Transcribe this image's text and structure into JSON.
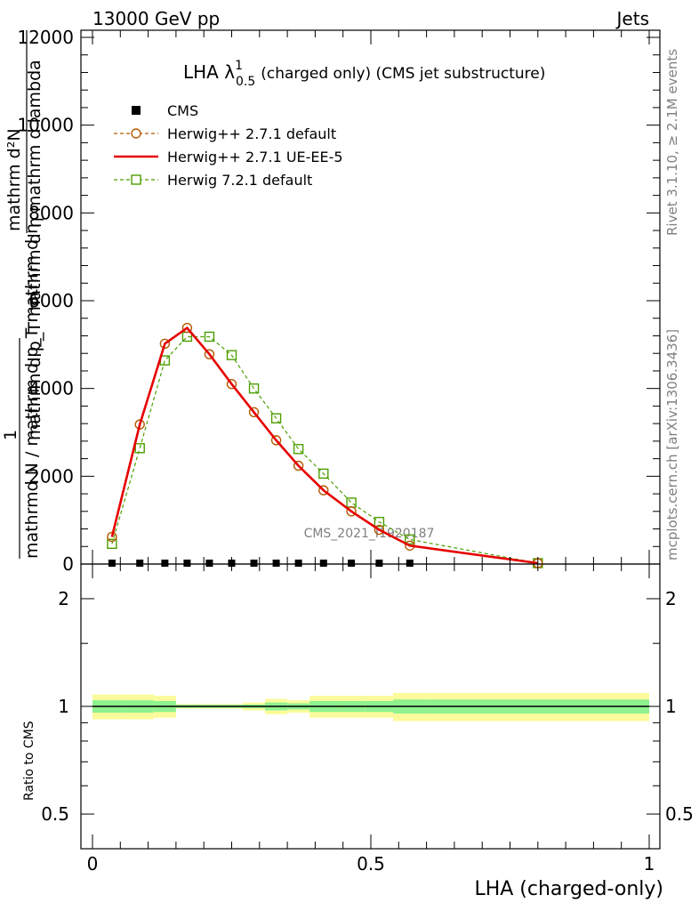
{
  "header": {
    "energy_label": "13000 GeV pp",
    "process_label": "Jets"
  },
  "side_labels": {
    "rivet": "Rivet 3.1.10, ≥ 2.1M events",
    "mcplots": "mcplots.cern.ch [arXiv:1306.3436]"
  },
  "watermark": "CMS_2021_I1920187",
  "chart_data": [
    {
      "type": "line",
      "title_main": "LHA λ",
      "title_sup": "1",
      "title_sub": "0.5",
      "title_rest": "(charged only) (CMS jet substructure)",
      "ylabel": "1 / mathrmd N / mathrm d p_T mathrm d η · mathrm d²N / mathrm d p_T mathrm d η mathrm d lambda",
      "ylabel_top": "mathrm d²N",
      "ylabel_mid": "mathrm d p_T mathrm d η mathrm d lambda",
      "ylabel_one": "1",
      "ylabel_bottom": "mathrmd N / mathrm d p_T mathrm d η",
      "xlim": [
        0,
        1
      ],
      "ylim": [
        0,
        12000
      ],
      "y_ticks": [
        "0",
        "2000",
        "4000",
        "6000",
        "8000",
        "10000",
        "12000"
      ],
      "y_tick_values": [
        0,
        2000,
        4000,
        6000,
        8000,
        10000,
        12000
      ],
      "x": [
        0.035,
        0.085,
        0.13,
        0.17,
        0.21,
        0.25,
        0.29,
        0.33,
        0.37,
        0.415,
        0.465,
        0.515,
        0.57,
        0.8
      ],
      "series": [
        {
          "name": "CMS",
          "color": "#000000",
          "marker": "filled-square",
          "values": [
            20,
            20,
            20,
            20,
            20,
            20,
            20,
            20,
            20,
            20,
            20,
            20,
            20,
            null
          ]
        },
        {
          "name": "Herwig++ 2.7.1 default",
          "color": "#b35900",
          "marker": "open-circle",
          "dash": "dashed",
          "values": [
            620,
            3180,
            5020,
            5380,
            4780,
            4100,
            3460,
            2820,
            2240,
            1680,
            1200,
            780,
            420,
            20
          ]
        },
        {
          "name": "Herwig++ 2.7.1 UE-EE-5",
          "color": "#e60000",
          "marker": "none",
          "dash": "solid",
          "values": [
            620,
            3180,
            5020,
            5380,
            4780,
            4100,
            3460,
            2820,
            2240,
            1680,
            1200,
            780,
            420,
            20
          ]
        },
        {
          "name": "Herwig 7.2.1 default",
          "color": "#4d9e00",
          "marker": "open-square",
          "dash": "dashed",
          "values": [
            460,
            2640,
            4640,
            5180,
            5180,
            4760,
            4000,
            3320,
            2620,
            2060,
            1400,
            960,
            560,
            20
          ]
        }
      ]
    },
    {
      "type": "area",
      "ylabel": "Ratio to CMS",
      "xlabel": "LHA (charged-only)",
      "x_ticks": [
        "0",
        "0.5",
        "1"
      ],
      "x_tick_values": [
        0,
        0.5,
        1
      ],
      "y_ticks": [
        "0.5",
        "1",
        "2"
      ],
      "y_tick_values": [
        0.5,
        1,
        2
      ],
      "ylim": [
        0.4,
        2.5
      ],
      "log_scale": true,
      "reference": 1,
      "bins": [
        0,
        0.06,
        0.11,
        0.15,
        0.19,
        0.23,
        0.27,
        0.31,
        0.35,
        0.39,
        0.44,
        0.49,
        0.54,
        0.6,
        1.0
      ],
      "stat_band": [
        0.04,
        0.04,
        0.035,
        0.01,
        0.01,
        0.01,
        0.012,
        0.025,
        0.02,
        0.035,
        0.035,
        0.035,
        0.045,
        0.045
      ],
      "total_band": [
        0.08,
        0.08,
        0.07,
        0.015,
        0.015,
        0.015,
        0.025,
        0.05,
        0.04,
        0.07,
        0.07,
        0.07,
        0.09,
        0.09
      ],
      "colors": {
        "stat": "#8ef28e",
        "total": "#fbfb9c",
        "line": "#000000"
      }
    }
  ]
}
